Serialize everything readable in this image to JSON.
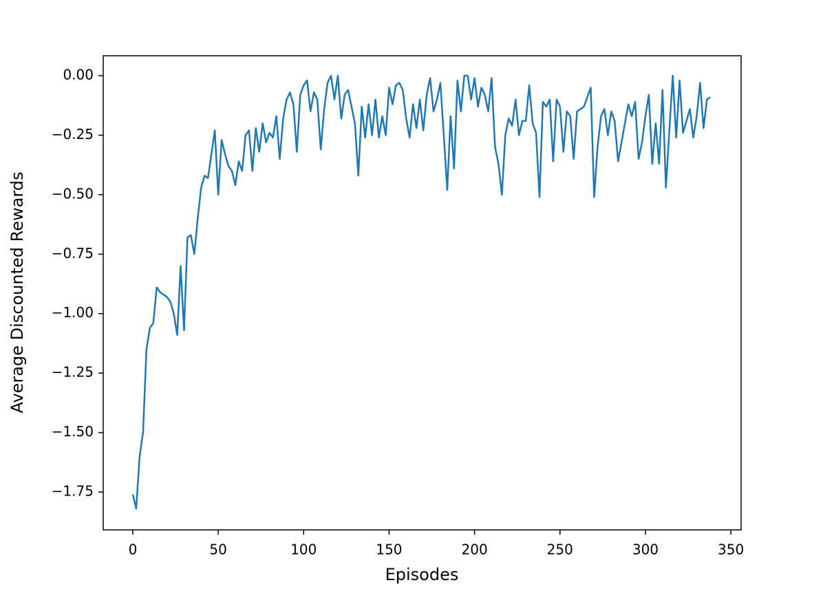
{
  "chart_data": {
    "type": "line",
    "xlabel": "Episodes",
    "ylabel": "Average Discounted Rewards",
    "color": "#1f77b4",
    "xlim": [
      -17.3,
      356
    ],
    "ylim": [
      -1.909,
      0.084
    ],
    "xticks": [
      0,
      50,
      100,
      150,
      200,
      250,
      300,
      350
    ],
    "yticks": [
      {
        "value": 0,
        "label": "0.00"
      },
      {
        "value": -0.25,
        "label": "−0.25"
      },
      {
        "value": -0.5,
        "label": "−0.50"
      },
      {
        "value": -0.75,
        "label": "−0.75"
      },
      {
        "value": -1,
        "label": "−1.00"
      },
      {
        "value": -1.25,
        "label": "−1.25"
      },
      {
        "value": -1.5,
        "label": "−1.50"
      },
      {
        "value": -1.75,
        "label": "−1.75"
      }
    ],
    "x": [
      0,
      2,
      4,
      6,
      8,
      10,
      12,
      14,
      16,
      18,
      20,
      22,
      24,
      26,
      28,
      30,
      32,
      34,
      36,
      38,
      40,
      42,
      44,
      46,
      48,
      50,
      52,
      54,
      56,
      58,
      60,
      62,
      64,
      66,
      68,
      70,
      72,
      74,
      76,
      78,
      80,
      82,
      84,
      86,
      88,
      90,
      92,
      94,
      96,
      98,
      100,
      102,
      104,
      106,
      108,
      110,
      112,
      114,
      116,
      118,
      120,
      122,
      124,
      126,
      128,
      130,
      132,
      134,
      136,
      138,
      140,
      142,
      144,
      146,
      148,
      150,
      152,
      154,
      156,
      158,
      160,
      162,
      164,
      166,
      168,
      170,
      172,
      174,
      176,
      178,
      180,
      182,
      184,
      186,
      188,
      190,
      192,
      194,
      196,
      198,
      200,
      202,
      204,
      206,
      208,
      210,
      212,
      214,
      216,
      218,
      220,
      222,
      224,
      226,
      228,
      230,
      232,
      234,
      236,
      238,
      240,
      242,
      244,
      246,
      248,
      250,
      252,
      254,
      256,
      258,
      260,
      262,
      264,
      266,
      268,
      270,
      272,
      274,
      276,
      278,
      280,
      282,
      284,
      286,
      288,
      290,
      292,
      294,
      296,
      298,
      300,
      302,
      304,
      306,
      308,
      310,
      312,
      314,
      316,
      318,
      320,
      322,
      324,
      326,
      328,
      330,
      332,
      334,
      336,
      338
    ],
    "values": [
      -1.76,
      -1.82,
      -1.6,
      -1.5,
      -1.15,
      -1.06,
      -1.04,
      -0.89,
      -0.91,
      -0.92,
      -0.93,
      -0.95,
      -1.0,
      -1.09,
      -0.8,
      -1.07,
      -0.68,
      -0.67,
      -0.75,
      -0.6,
      -0.47,
      -0.42,
      -0.43,
      -0.33,
      -0.23,
      -0.5,
      -0.27,
      -0.33,
      -0.38,
      -0.4,
      -0.46,
      -0.36,
      -0.4,
      -0.25,
      -0.23,
      -0.4,
      -0.22,
      -0.32,
      -0.2,
      -0.28,
      -0.24,
      -0.26,
      -0.17,
      -0.35,
      -0.18,
      -0.1,
      -0.07,
      -0.12,
      -0.32,
      -0.08,
      -0.04,
      -0.02,
      -0.15,
      -0.07,
      -0.1,
      -0.31,
      -0.14,
      -0.03,
      0.0,
      -0.1,
      0.0,
      -0.18,
      -0.08,
      -0.06,
      -0.13,
      -0.2,
      -0.42,
      -0.13,
      -0.26,
      -0.12,
      -0.25,
      -0.1,
      -0.26,
      -0.17,
      -0.25,
      -0.05,
      -0.12,
      -0.04,
      -0.03,
      -0.06,
      -0.18,
      -0.26,
      -0.12,
      -0.22,
      -0.1,
      -0.23,
      -0.08,
      -0.01,
      -0.15,
      -0.1,
      -0.03,
      -0.25,
      -0.48,
      -0.17,
      -0.39,
      -0.02,
      -0.15,
      0.0,
      0.0,
      -0.1,
      -0.01,
      -0.13,
      -0.05,
      -0.08,
      -0.15,
      -0.01,
      -0.3,
      -0.37,
      -0.5,
      -0.25,
      -0.18,
      -0.21,
      -0.1,
      -0.25,
      -0.19,
      -0.19,
      -0.04,
      -0.2,
      -0.24,
      -0.51,
      -0.11,
      -0.13,
      -0.1,
      -0.36,
      -0.1,
      -0.13,
      -0.32,
      -0.15,
      -0.17,
      -0.35,
      -0.15,
      -0.14,
      -0.13,
      -0.09,
      -0.05,
      -0.51,
      -0.3,
      -0.17,
      -0.14,
      -0.25,
      -0.15,
      -0.19,
      -0.36,
      -0.28,
      -0.2,
      -0.12,
      -0.17,
      -0.11,
      -0.35,
      -0.28,
      -0.17,
      -0.08,
      -0.37,
      -0.2,
      -0.37,
      -0.06,
      -0.47,
      -0.23,
      0.0,
      -0.26,
      -0.02,
      -0.24,
      -0.19,
      -0.14,
      -0.26,
      -0.17,
      -0.03,
      -0.22,
      -0.1,
      -0.09
    ]
  }
}
